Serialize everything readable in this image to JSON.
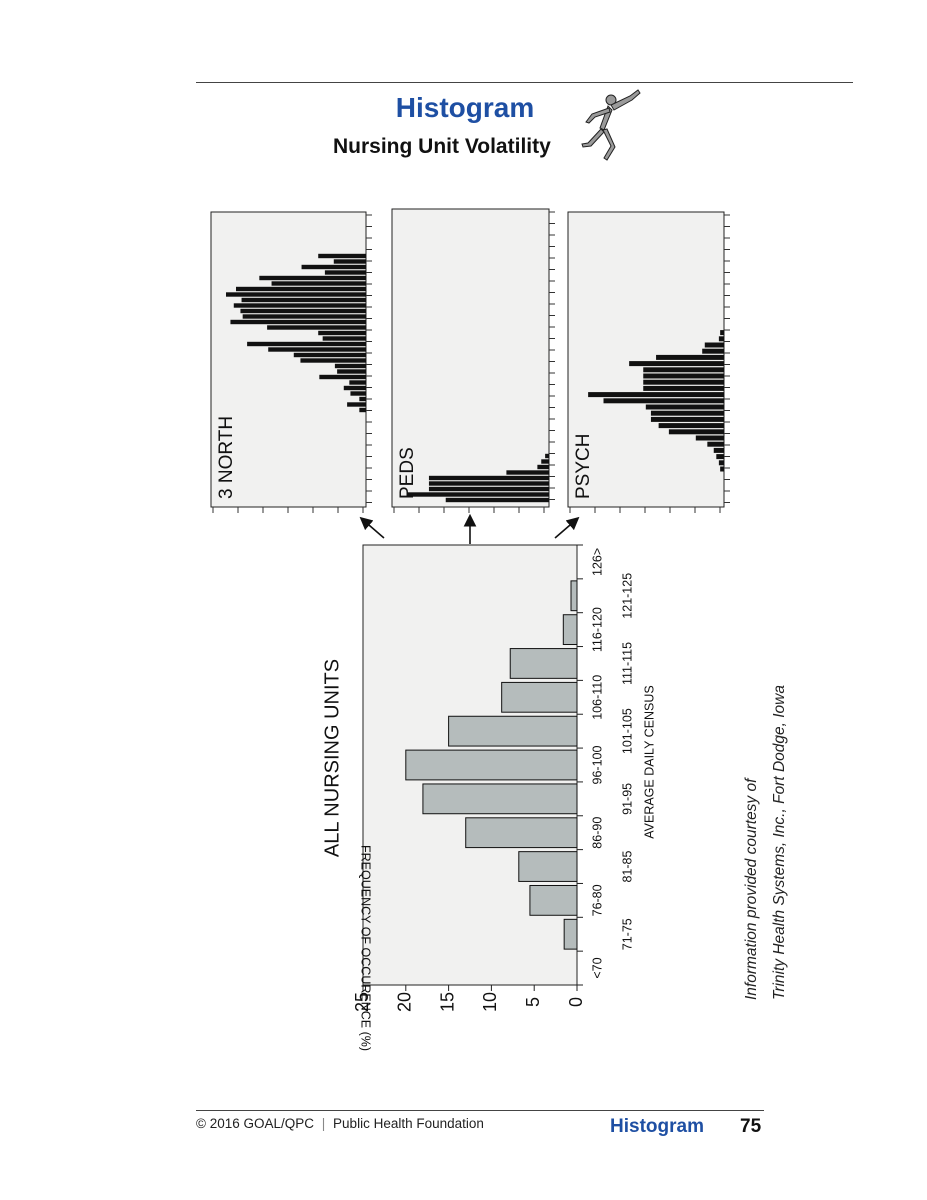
{
  "header": {
    "title": "Histogram",
    "subtitle": "Nursing Unit Volatility",
    "figure_icon": "running-figure-icon"
  },
  "chart_data": [
    {
      "type": "bar",
      "title": "ALL NURSING UNITS",
      "xlabel": "AVERAGE DAILY CENSUS",
      "ylabel": "FREQUENCY OF OCCURENCE (%)",
      "categories": [
        "<70",
        "71-75",
        "76-80",
        "81-85",
        "86-90",
        "91-95",
        "96-100",
        "101-105",
        "106-110",
        "111-115",
        "116-120",
        "121-125",
        "126>"
      ],
      "values": [
        0,
        1.5,
        5.5,
        6.8,
        13,
        18,
        20,
        15,
        8.8,
        7.8,
        1.6,
        0.7,
        0
      ],
      "yticks": [
        0,
        5,
        10,
        15,
        20,
        25
      ],
      "ylim": [
        0,
        25
      ],
      "bar_color": "#b5bcbc"
    },
    {
      "type": "bar",
      "title": "3 NORTH",
      "values": [
        0.6,
        1.7,
        0.6,
        1.4,
        2,
        1.5,
        4.2,
        2.6,
        2.8,
        5.9,
        6.5,
        8.8,
        10.7,
        3.9,
        4.3,
        8.9,
        12.2,
        11.1,
        11.3,
        11.9,
        11.2,
        12.6,
        11.7,
        8.5,
        9.6,
        3.7,
        5.8,
        2.9,
        4.3
      ],
      "color": "#111111"
    },
    {
      "type": "bar",
      "title": "PEDS",
      "values": [
        8,
        11,
        9.3,
        9.3,
        9.3,
        3.3,
        0.9,
        0.6,
        0.3
      ],
      "color": "#111111"
    },
    {
      "type": "bar",
      "title": "PSYCH",
      "values": [
        0.3,
        0.4,
        0.6,
        0.8,
        1.3,
        2.2,
        4.3,
        5.1,
        5.7,
        5.7,
        6.1,
        9.4,
        10.6,
        6.3,
        6.3,
        6.3,
        6.3,
        7.4,
        5.3,
        1.7,
        1.5,
        0.4,
        0.3
      ],
      "color": "#111111"
    }
  ],
  "courtesy": {
    "line1": "Information provided courtesy of",
    "line2": "Trinity Health Systems, Inc., Fort Dodge, Iowa"
  },
  "footer": {
    "copyright": "© 2016 GOAL/QPC",
    "separator": "|",
    "org": "Public Health Foundation",
    "section": "Histogram",
    "page": "75"
  },
  "colors": {
    "title_blue": "#1e4fa3",
    "panel_bg": "#f1f1f0"
  }
}
